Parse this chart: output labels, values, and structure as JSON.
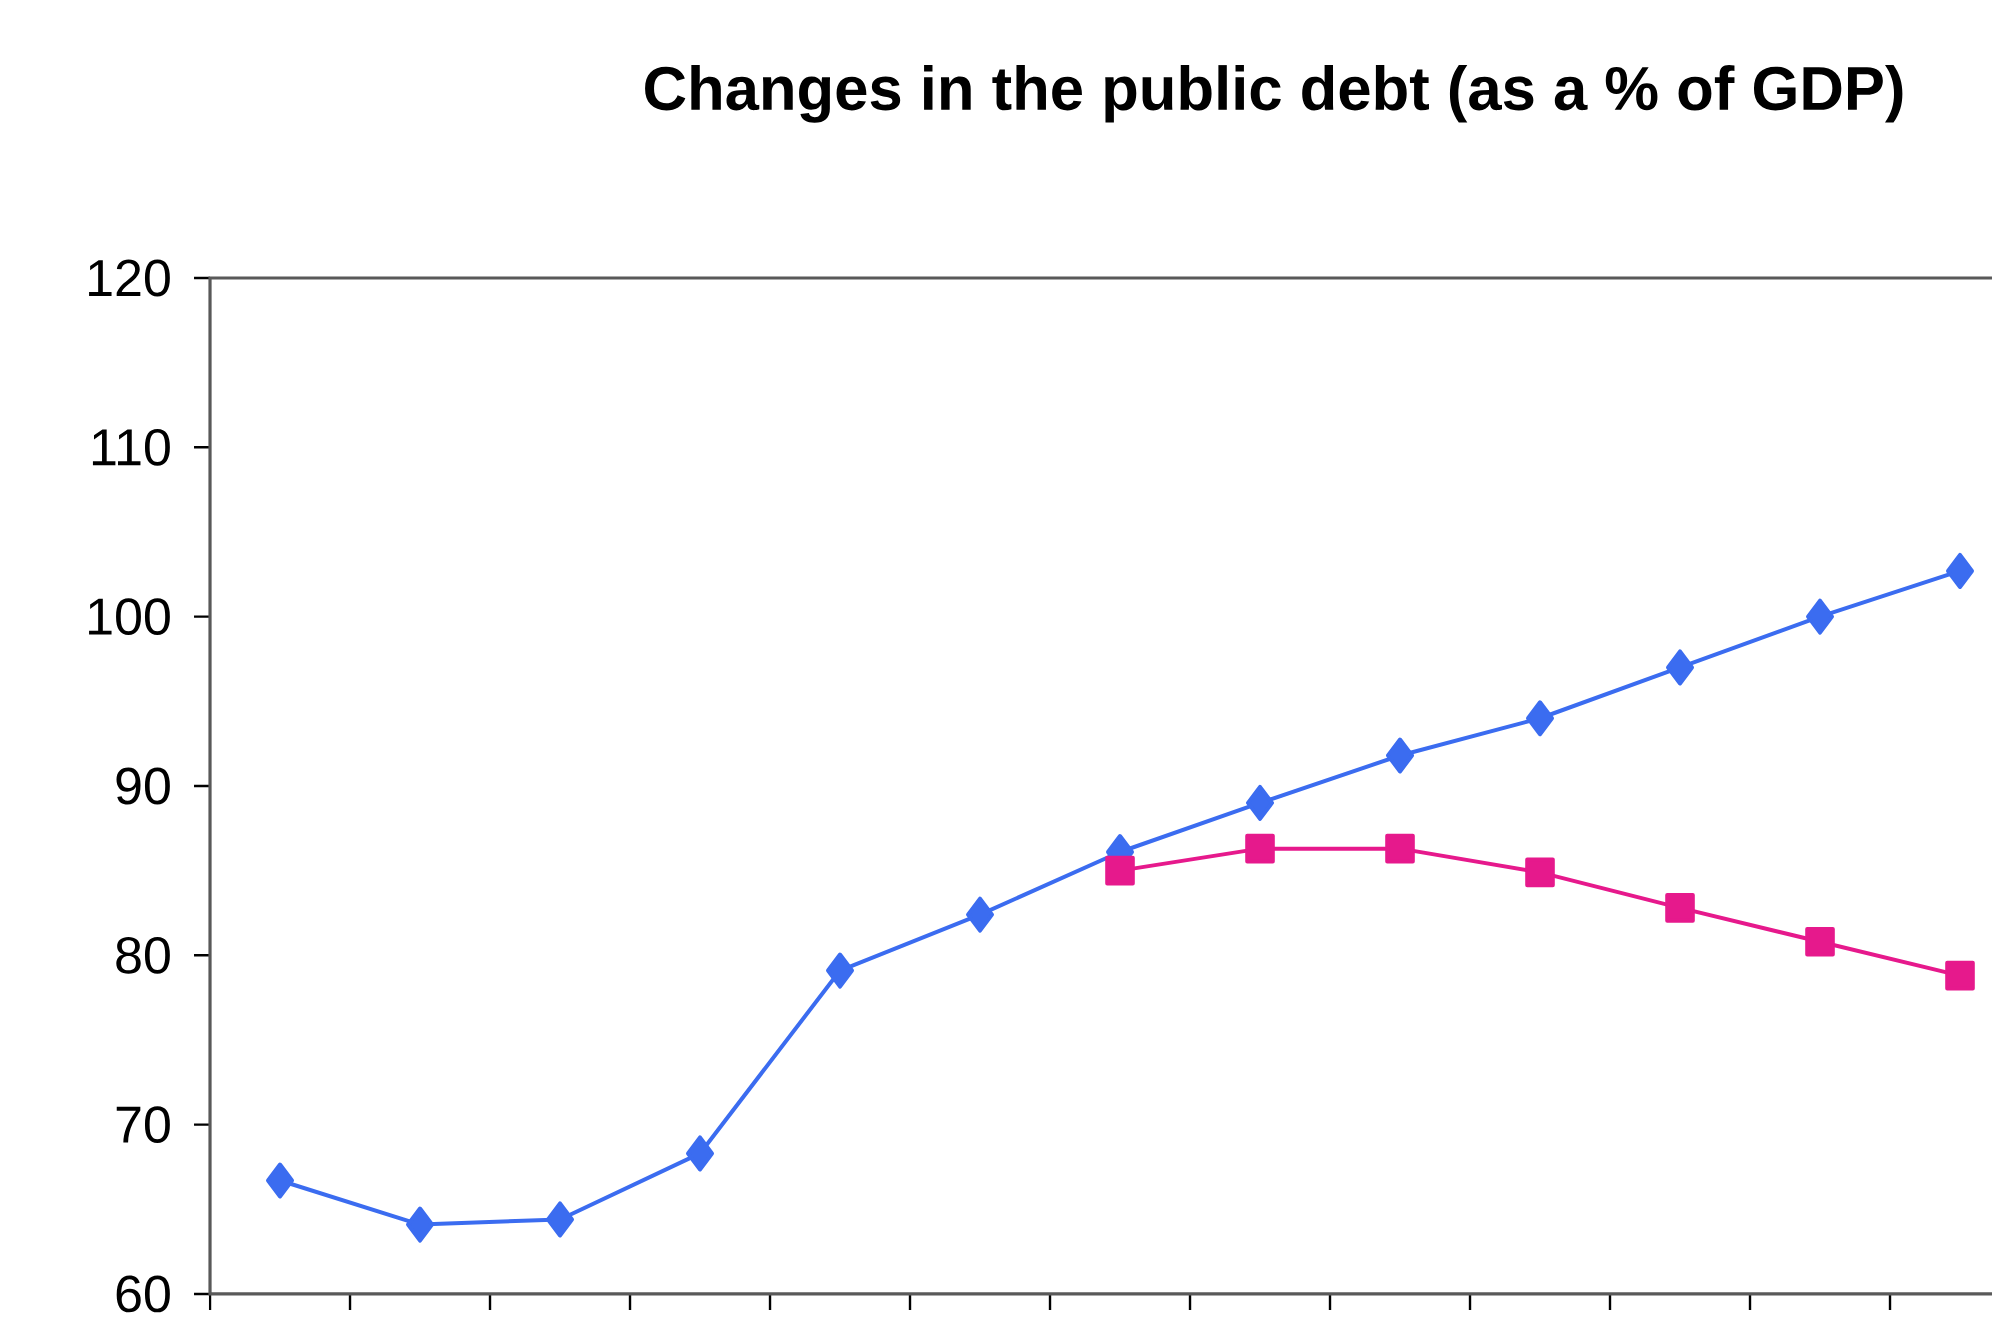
{
  "chart_data": {
    "type": "line",
    "title": "Changes in the public debt (as a % of GDP)",
    "categories": [
      null,
      null,
      null,
      null,
      null,
      null,
      null,
      null,
      null,
      null,
      null,
      null,
      null
    ],
    "series": [
      {
        "color": "#3b6cf0",
        "marker": "diamond",
        "values": [
          66.7,
          64.1,
          64.4,
          68.3,
          79.1,
          82.4,
          86.1,
          89.0,
          91.8,
          94.0,
          97.0,
          100.0,
          102.7
        ]
      },
      {
        "color": "#e6198c",
        "marker": "square",
        "values": [
          null,
          null,
          null,
          null,
          null,
          null,
          85.0,
          86.3,
          86.3,
          84.9,
          82.8,
          80.8,
          78.8
        ]
      }
    ],
    "ylim": [
      60,
      120
    ],
    "yticks": [
      60,
      70,
      80,
      90,
      100,
      110,
      120
    ],
    "tick_labels": "y",
    "grid": false,
    "legend": false,
    "line_style": "solid"
  }
}
